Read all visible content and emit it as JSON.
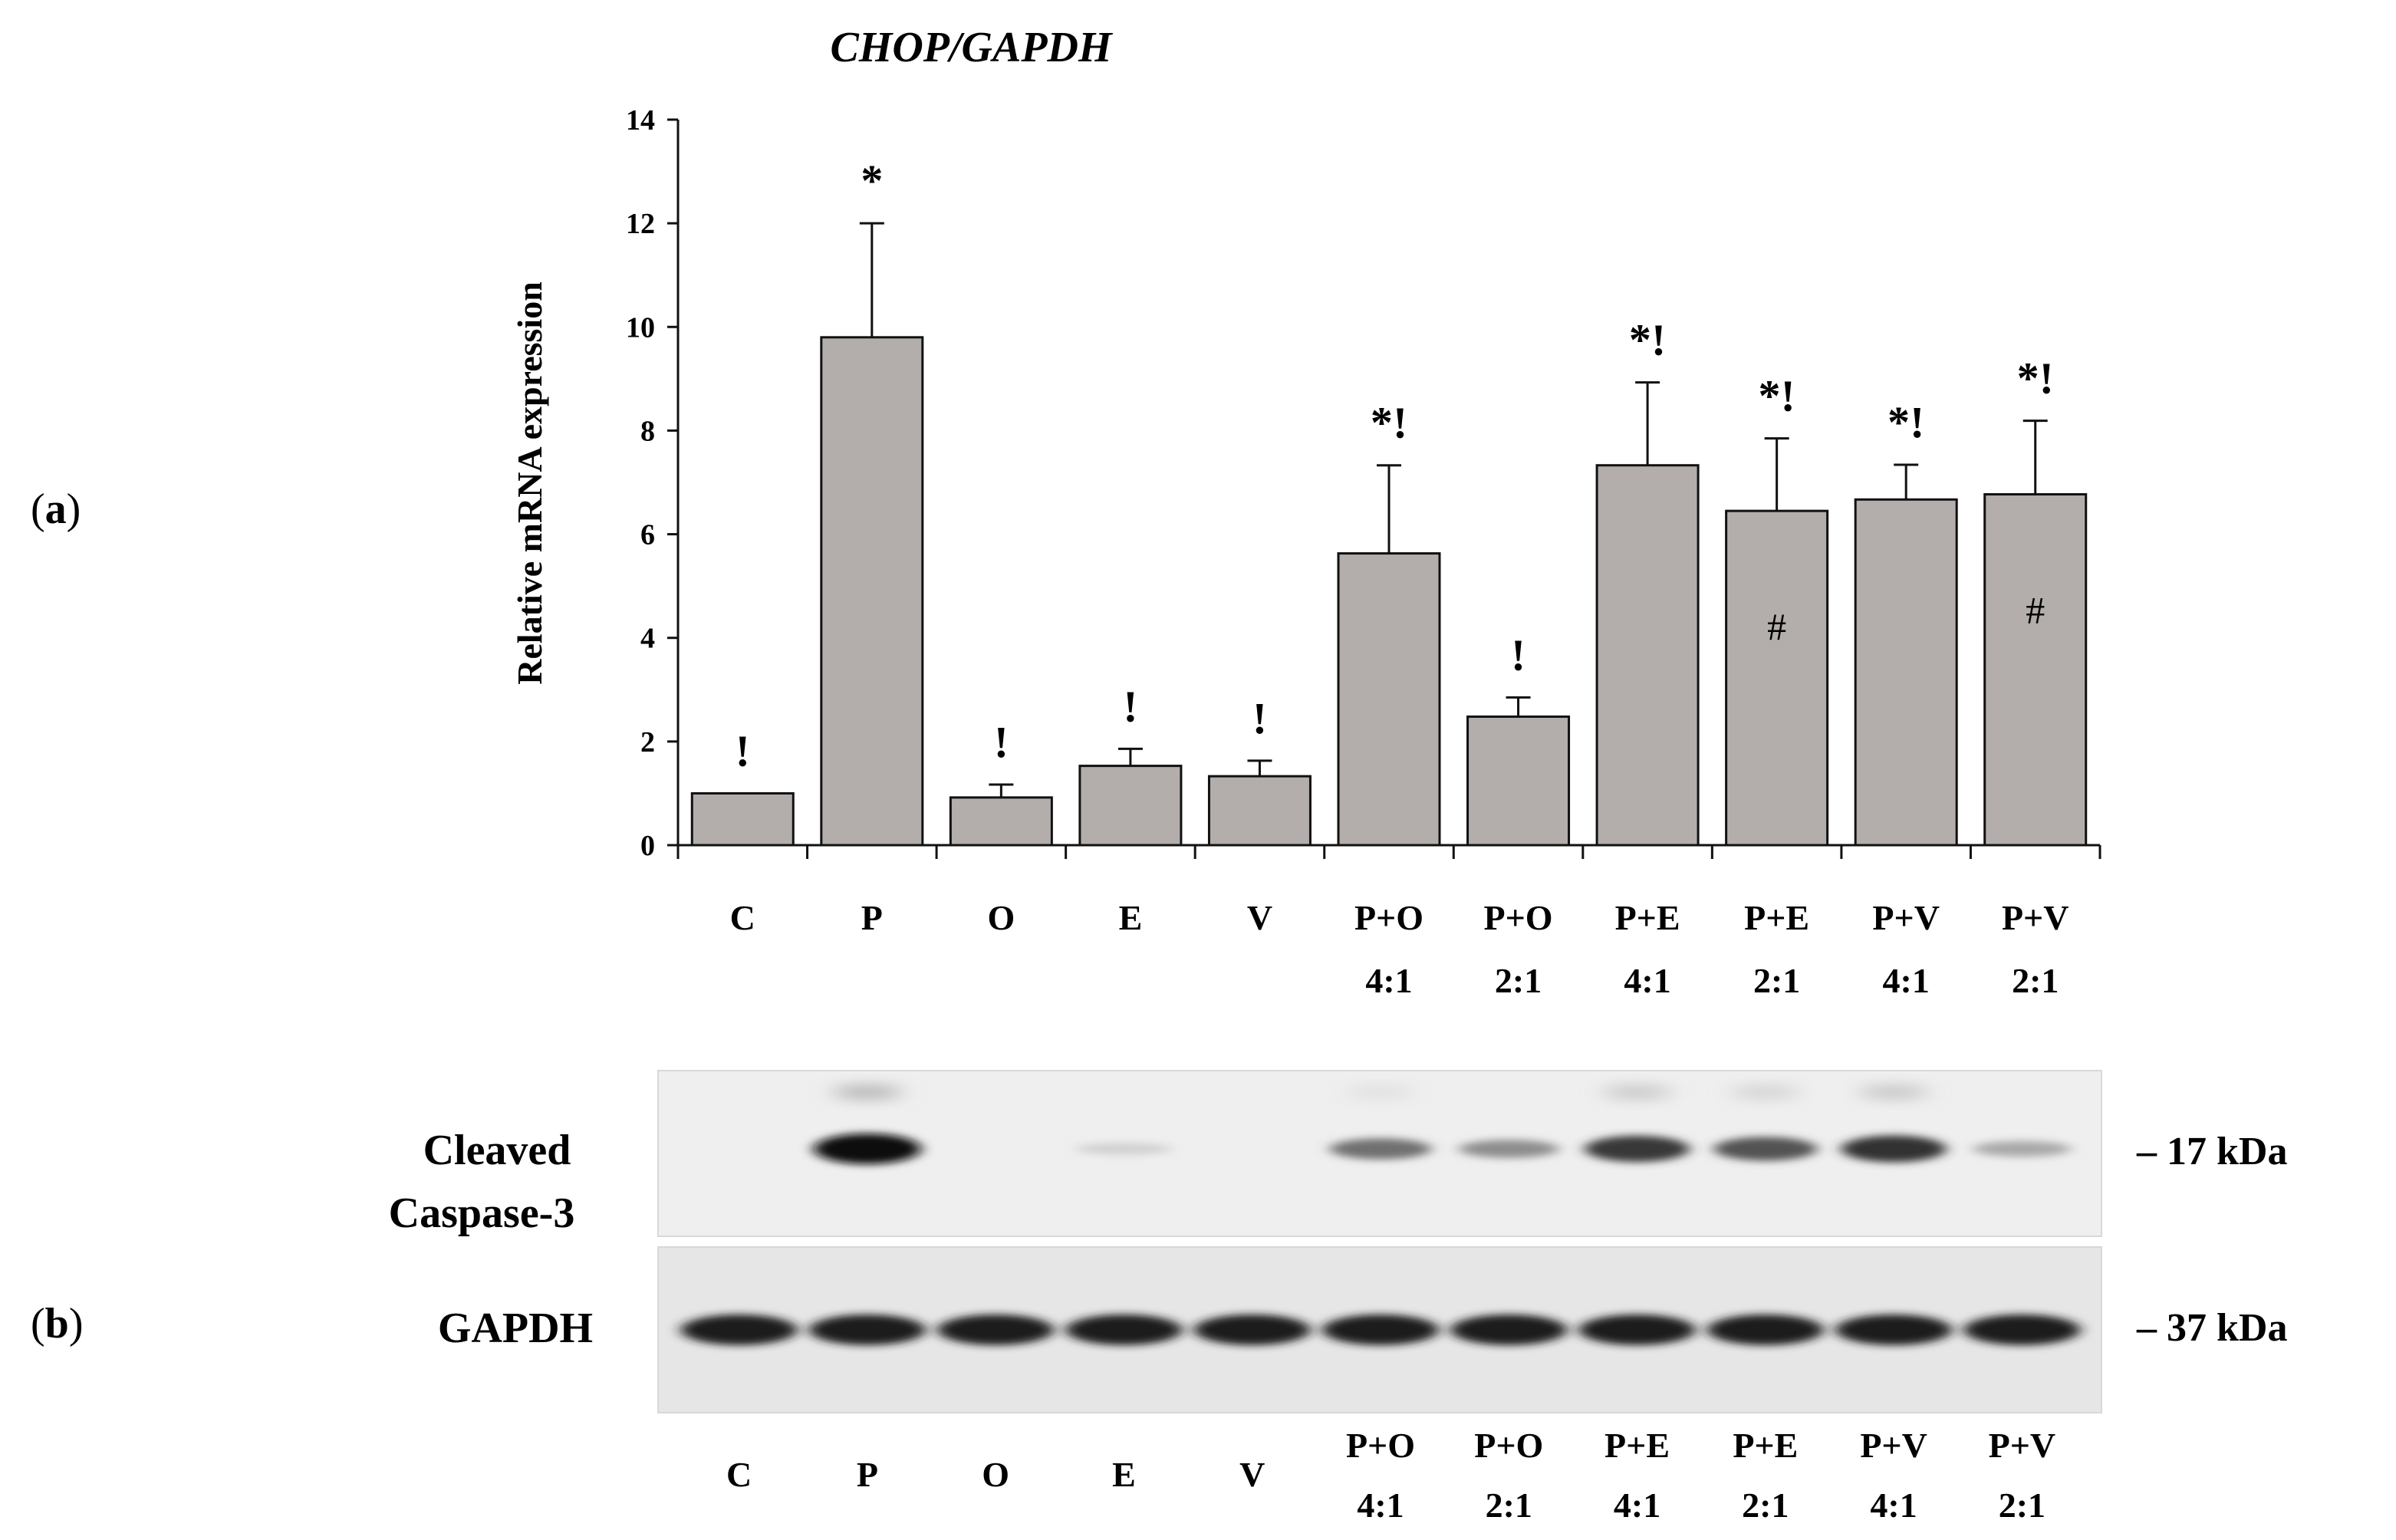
{
  "panels": {
    "a_prefix": "(",
    "a_letter": "a",
    "a_suffix": ")",
    "b_prefix": "(",
    "b_letter": "b",
    "b_suffix": ")"
  },
  "chart_data": {
    "type": "bar",
    "title": "CHOP/GAPDH",
    "xlabel": "",
    "ylabel": "Relative mRNA expression",
    "ylim": [
      0,
      14
    ],
    "yticks": [
      0,
      2,
      4,
      6,
      8,
      10,
      12,
      14
    ],
    "grid": false,
    "legend": "none",
    "bar_color": "#b3aeab",
    "categories": [
      [
        "C",
        ""
      ],
      [
        "P",
        ""
      ],
      [
        "O",
        ""
      ],
      [
        "E",
        ""
      ],
      [
        "V",
        ""
      ],
      [
        "P+O",
        "4:1"
      ],
      [
        "P+O",
        "2:1"
      ],
      [
        "P+E",
        "4:1"
      ],
      [
        "P+E",
        "2:1"
      ],
      [
        "P+V",
        "4:1"
      ],
      [
        "P+V",
        "2:1"
      ]
    ],
    "values": [
      1.0,
      9.8,
      0.92,
      1.53,
      1.33,
      5.63,
      2.48,
      7.33,
      6.45,
      6.67,
      6.77
    ],
    "errors": [
      0.0,
      2.2,
      0.25,
      0.33,
      0.3,
      1.7,
      0.37,
      1.6,
      1.4,
      0.67,
      1.42
    ],
    "annotations_above": [
      "!",
      "*",
      "!",
      "!",
      "!",
      "*!",
      "!",
      "*!",
      "*!",
      "*!",
      "*!"
    ],
    "annotations_inside": [
      "",
      "",
      "",
      "",
      "",
      "",
      "",
      "",
      "#",
      "",
      "#"
    ]
  },
  "blot": {
    "lanes": [
      [
        "C",
        ""
      ],
      [
        "P",
        ""
      ],
      [
        "O",
        ""
      ],
      [
        "E",
        ""
      ],
      [
        "V",
        ""
      ],
      [
        "P+O",
        "4:1"
      ],
      [
        "P+O",
        "2:1"
      ],
      [
        "P+E",
        "4:1"
      ],
      [
        "P+E",
        "2:1"
      ],
      [
        "P+V",
        "4:1"
      ],
      [
        "P+V",
        "2:1"
      ]
    ],
    "cleaved_label_line1": "Cleaved",
    "cleaved_label_line2": "Caspase-3",
    "gapdh_label": "GAPDH",
    "marker_17": "– 17 kDa",
    "marker_37": "– 37 kDa",
    "cleaved_intensity": [
      0.0,
      1.0,
      0.0,
      0.12,
      0.0,
      0.55,
      0.42,
      0.8,
      0.68,
      0.82,
      0.3
    ],
    "gapdh_intensity": [
      1.0,
      1.0,
      1.0,
      1.0,
      1.0,
      1.0,
      1.0,
      1.0,
      1.0,
      1.0,
      1.0
    ]
  }
}
